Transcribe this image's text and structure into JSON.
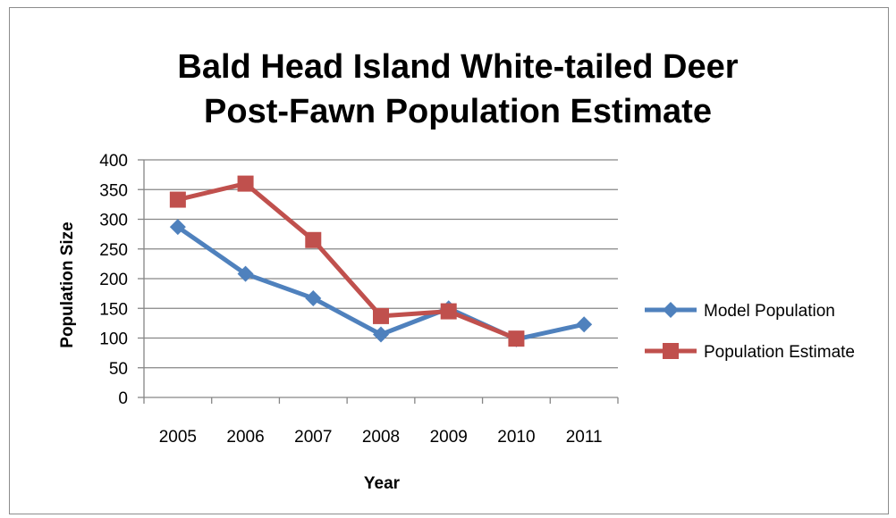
{
  "chart_data": {
    "type": "line",
    "title_lines": [
      "Bald Head Island White-tailed Deer",
      "Post-Fawn Population Estimate"
    ],
    "xlabel": "Year",
    "ylabel": "Population Size",
    "categories": [
      "2005",
      "2006",
      "2007",
      "2008",
      "2009",
      "2010",
      "2011"
    ],
    "ylim": [
      0,
      400
    ],
    "yticks": [
      0,
      50,
      100,
      150,
      200,
      250,
      300,
      350,
      400
    ],
    "grid": true,
    "legend_position": "right",
    "series": [
      {
        "name": "Model Population",
        "color": "#4f81bd",
        "marker": "diamond",
        "values": [
          287,
          208,
          167,
          106,
          150,
          98,
          123
        ]
      },
      {
        "name": "Population Estimate",
        "color": "#c0504d",
        "marker": "square",
        "values": [
          333,
          360,
          265,
          137,
          145,
          99,
          null
        ]
      }
    ]
  }
}
